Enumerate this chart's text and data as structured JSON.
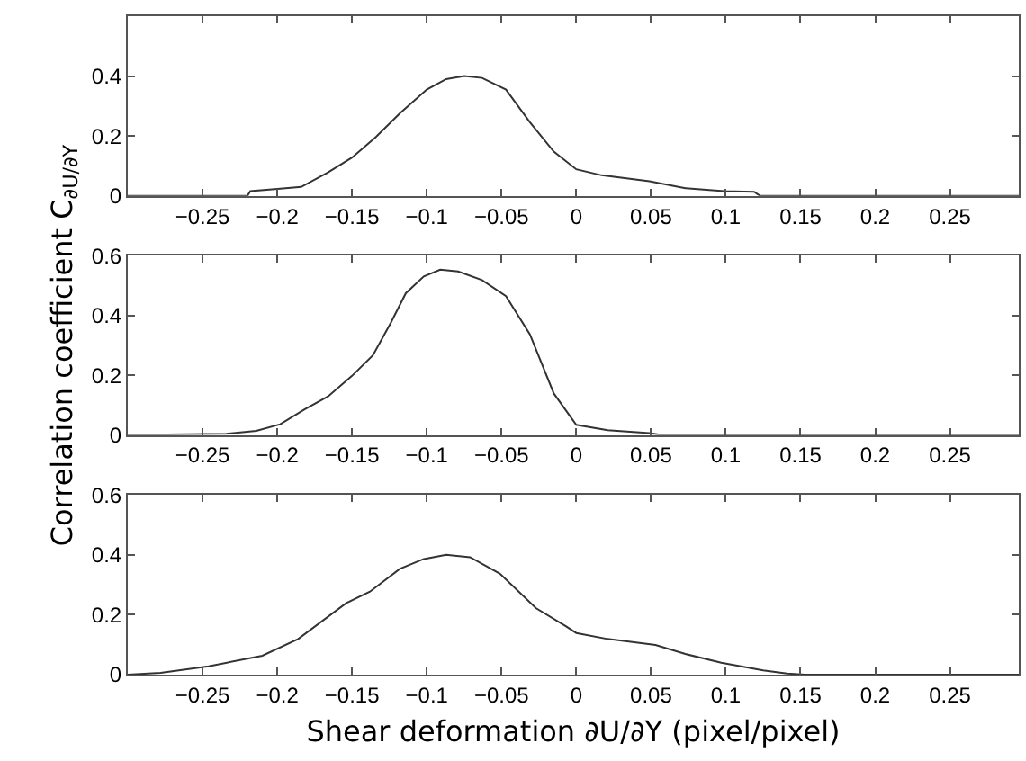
{
  "chart_data": [
    {
      "type": "line",
      "xlim": [
        -0.3,
        0.296
      ],
      "xticks": [
        -0.25,
        -0.2,
        -0.15,
        -0.1,
        -0.05,
        0,
        0.05,
        0.1,
        0.15,
        0.2,
        0.25
      ],
      "ylim": [
        0,
        0.6
      ],
      "yticks": [
        0,
        0.2,
        0.4
      ],
      "x": [
        -0.3,
        -0.22,
        -0.218,
        -0.198,
        -0.184,
        -0.166,
        -0.15,
        -0.134,
        -0.118,
        -0.1,
        -0.087,
        -0.075,
        -0.063,
        -0.047,
        -0.031,
        -0.015,
        0,
        0.017,
        0.049,
        0.073,
        0.099,
        0.119,
        0.123,
        0.296
      ],
      "series": [
        {
          "color": "#333333",
          "values": [
            0,
            0,
            0.016,
            0.024,
            0.03,
            0.079,
            0.128,
            0.197,
            0.276,
            0.355,
            0.39,
            0.4,
            0.394,
            0.355,
            0.246,
            0.148,
            0.089,
            0.069,
            0.049,
            0.026,
            0.016,
            0.014,
            0,
            0
          ]
        }
      ]
    },
    {
      "type": "line",
      "ylabel": "Correlation coefficient C$_{∂U/∂Y}$",
      "xlim": [
        -0.3,
        0.296
      ],
      "xticks": [
        -0.25,
        -0.2,
        -0.15,
        -0.1,
        -0.05,
        0,
        0.05,
        0.1,
        0.15,
        0.2,
        0.25
      ],
      "ylim": [
        0,
        0.6
      ],
      "yticks": [
        0,
        0.2,
        0.4,
        0.6
      ],
      "x": [
        -0.3,
        -0.234,
        -0.214,
        -0.198,
        -0.182,
        -0.166,
        -0.15,
        -0.136,
        -0.124,
        -0.114,
        -0.102,
        -0.091,
        -0.079,
        -0.063,
        -0.047,
        -0.031,
        -0.015,
        0,
        0.021,
        0.049,
        0.057,
        0.296
      ],
      "series": [
        {
          "color": "#333333",
          "values": [
            0,
            0.004,
            0.014,
            0.036,
            0.085,
            0.129,
            0.198,
            0.267,
            0.376,
            0.475,
            0.531,
            0.554,
            0.548,
            0.519,
            0.465,
            0.337,
            0.139,
            0.034,
            0.016,
            0.006,
            0,
            0
          ]
        }
      ]
    },
    {
      "type": "line",
      "xlabel": "Shear deformation ∂U/∂Y (pixel/pixel)",
      "xlim": [
        -0.3,
        0.296
      ],
      "xticks": [
        -0.25,
        -0.2,
        -0.15,
        -0.1,
        -0.05,
        0,
        0.05,
        0.1,
        0.15,
        0.2,
        0.25
      ],
      "ylim": [
        0,
        0.6
      ],
      "yticks": [
        0,
        0.2,
        0.4,
        0.6
      ],
      "x": [
        -0.3,
        -0.278,
        -0.246,
        -0.21,
        -0.186,
        -0.154,
        -0.138,
        -0.118,
        -0.102,
        -0.087,
        -0.071,
        -0.051,
        -0.027,
        -0.007,
        0,
        0.021,
        0.053,
        0.073,
        0.097,
        0.125,
        0.141,
        0.153,
        0.296
      ],
      "series": [
        {
          "color": "#333333",
          "values": [
            0,
            0.006,
            0.028,
            0.063,
            0.119,
            0.238,
            0.277,
            0.353,
            0.386,
            0.4,
            0.392,
            0.337,
            0.222,
            0.162,
            0.139,
            0.119,
            0.099,
            0.069,
            0.04,
            0.014,
            0.004,
            0,
            0
          ]
        }
      ]
    }
  ]
}
